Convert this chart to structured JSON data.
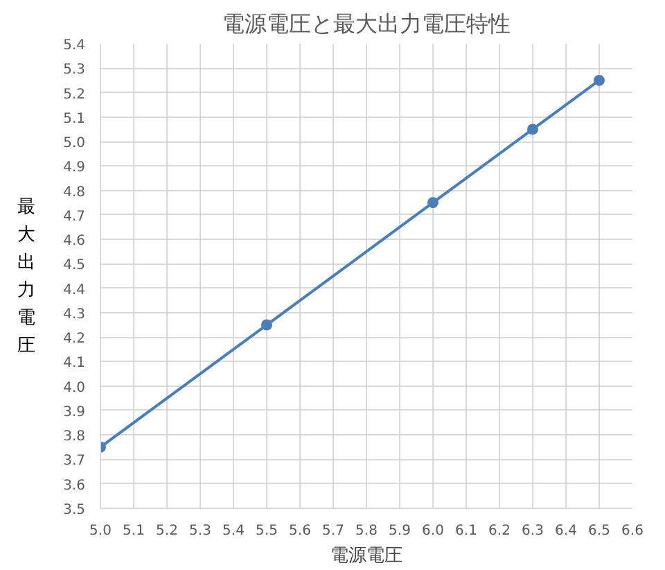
{
  "chart_data": {
    "type": "line",
    "title": "電源電圧と最大出力電圧特性",
    "xlabel": "電源電圧",
    "ylabel": "最大出力電圧",
    "x": [
      5.0,
      5.5,
      6.0,
      6.3,
      6.5
    ],
    "series": [
      {
        "color": "#4a7ebb",
        "values": [
          3.75,
          4.25,
          4.75,
          5.05,
          5.25
        ]
      }
    ],
    "xlim": [
      5.0,
      6.6
    ],
    "xticks": [
      {
        "value": 5,
        "label": "5.0"
      },
      5.1,
      5.2,
      5.3,
      5.4,
      5.5,
      5.6,
      5.7,
      5.8,
      5.9,
      {
        "value": 6,
        "label": "6.0"
      },
      6.1,
      6.2,
      6.3,
      6.4,
      6.5,
      6.6
    ],
    "ylim": [
      3.5,
      5.4
    ],
    "yticks": [
      3.5,
      3.6,
      3.7,
      3.8,
      3.9,
      {
        "value": 4,
        "label": "4.0"
      },
      4.1,
      4.2,
      4.3,
      4.4,
      4.5,
      4.6,
      4.7,
      4.8,
      4.9,
      {
        "value": 5,
        "label": "5.0"
      },
      5.1,
      5.2,
      5.3,
      5.4
    ],
    "grid": true,
    "marker": "circle",
    "line_style": "solid"
  }
}
